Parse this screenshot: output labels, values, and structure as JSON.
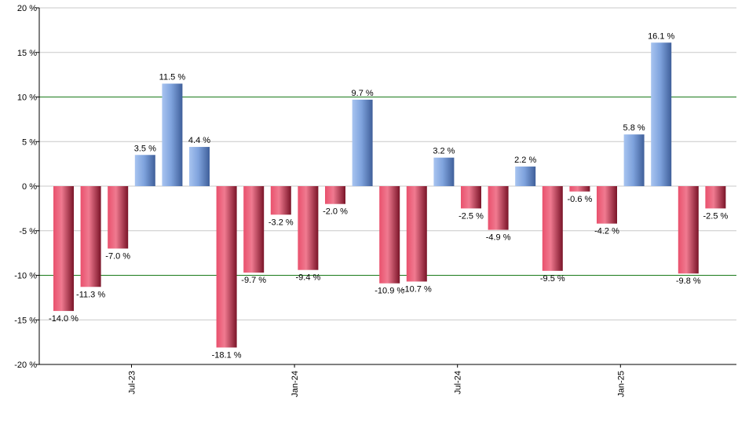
{
  "chart_data": {
    "type": "bar",
    "title": "",
    "xlabel": "",
    "ylabel": "",
    "ylim": [
      -20,
      20
    ],
    "y_ticks": [
      20,
      15,
      10,
      5,
      0,
      -5,
      -10,
      -15,
      -20
    ],
    "y_tick_labels": [
      "20 %",
      "15 %",
      "10 %",
      "5 %",
      "0 %",
      "-5 %",
      "-10 %",
      "-15 %",
      "-20 %"
    ],
    "reference_lines": [
      10,
      -10
    ],
    "grid": true,
    "values": [
      -14.0,
      -11.3,
      -7.0,
      3.5,
      11.5,
      4.4,
      -18.1,
      -9.7,
      -3.2,
      -9.4,
      -2.0,
      9.7,
      -10.9,
      -10.7,
      3.2,
      -2.5,
      -4.9,
      2.2,
      -9.5,
      -0.6,
      -4.2,
      5.8,
      16.1,
      -9.8,
      -2.5
    ],
    "value_labels": [
      "-14.0 %",
      "-11.3 %",
      "-7.0 %",
      "3.5 %",
      "11.5 %",
      "4.4 %",
      "-18.1 %",
      "-9.7 %",
      "-3.2 %",
      "-9.4 %",
      "-2.0 %",
      "9.7 %",
      "-10.9 %",
      "-10.7 %",
      "3.2 %",
      "-2.5 %",
      "-4.9 %",
      "2.2 %",
      "-9.5 %",
      "-0.6 %",
      "-4.2 %",
      "5.8 %",
      "16.1 %",
      "-9.8 %",
      "-2.5 %"
    ],
    "x_tick_labels": [
      {
        "label": "Jul-23",
        "after_bar_index": 2
      },
      {
        "label": "Jan-24",
        "after_bar_index": 8
      },
      {
        "label": "Jul-24",
        "after_bar_index": 14
      },
      {
        "label": "Jan-25",
        "after_bar_index": 20
      }
    ],
    "colors": {
      "positive": "#7a9fd8",
      "negative": "#c8324e",
      "grid": "#c8c8c8",
      "reference": "#1a7a1a",
      "axis": "#000000"
    }
  }
}
